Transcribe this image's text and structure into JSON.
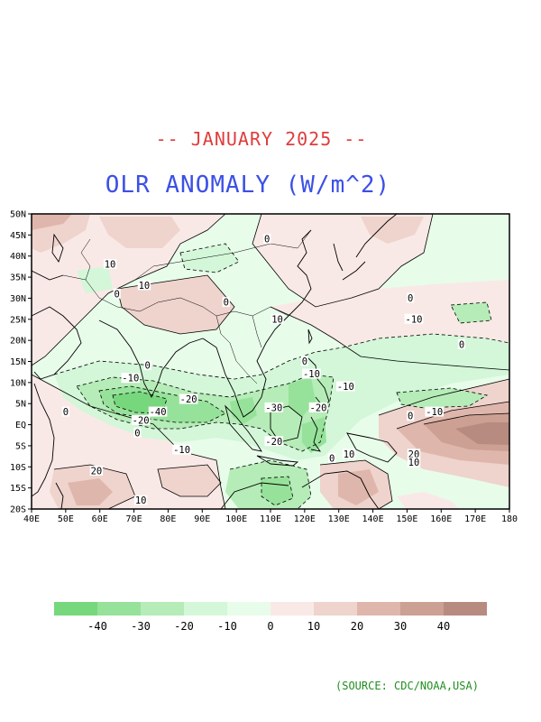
{
  "header": {
    "subtitle": "-- JANUARY 2025 --",
    "title": "OLR ANOMALY (W/m^2)"
  },
  "map": {
    "lat_labels": [
      "50N",
      "45N",
      "40N",
      "35N",
      "30N",
      "25N",
      "20N",
      "15N",
      "10N",
      "5N",
      "EQ",
      "5S",
      "10S",
      "15S",
      "20S"
    ],
    "lon_labels": [
      "40E",
      "50E",
      "60E",
      "70E",
      "80E",
      "90E",
      "100E",
      "110E",
      "120E",
      "130E",
      "140E",
      "150E",
      "160E",
      "170E",
      "180"
    ],
    "contour_labels": [
      {
        "text": "10",
        "lon": 63,
        "lat": 38
      },
      {
        "text": "10",
        "lon": 73,
        "lat": 33
      },
      {
        "text": "0",
        "lon": 65,
        "lat": 31
      },
      {
        "text": "0",
        "lon": 109,
        "lat": 44
      },
      {
        "text": "0",
        "lon": 97,
        "lat": 29
      },
      {
        "text": "10",
        "lon": 112,
        "lat": 25
      },
      {
        "text": "0",
        "lon": 151,
        "lat": 30
      },
      {
        "text": "-10",
        "lon": 152,
        "lat": 25
      },
      {
        "text": "0",
        "lon": 166,
        "lat": 19
      },
      {
        "text": "0",
        "lon": 74,
        "lat": 14
      },
      {
        "text": "-10",
        "lon": 69,
        "lat": 11
      },
      {
        "text": "-20",
        "lon": 86,
        "lat": 6
      },
      {
        "text": "-40",
        "lon": 77,
        "lat": 3
      },
      {
        "text": "-20",
        "lon": 72,
        "lat": 1
      },
      {
        "text": "0",
        "lon": 50,
        "lat": 3
      },
      {
        "text": "0",
        "lon": 71,
        "lat": -2
      },
      {
        "text": "-10",
        "lon": 84,
        "lat": -6
      },
      {
        "text": "-10",
        "lon": 122,
        "lat": 12
      },
      {
        "text": "0",
        "lon": 120,
        "lat": 15
      },
      {
        "text": "-10",
        "lon": 132,
        "lat": 9
      },
      {
        "text": "-30",
        "lon": 111,
        "lat": 4
      },
      {
        "text": "-20",
        "lon": 124,
        "lat": 4
      },
      {
        "text": "-20",
        "lon": 111,
        "lat": -4
      },
      {
        "text": "-10",
        "lon": 158,
        "lat": 3
      },
      {
        "text": "0",
        "lon": 151,
        "lat": 2
      },
      {
        "text": "20",
        "lon": 152,
        "lat": -7
      },
      {
        "text": "10",
        "lon": 152,
        "lat": -9
      },
      {
        "text": "10",
        "lon": 133,
        "lat": -7
      },
      {
        "text": "0",
        "lon": 128,
        "lat": -8
      },
      {
        "text": "20",
        "lon": 59,
        "lat": -11
      },
      {
        "text": "10",
        "lon": 72,
        "lat": -18
      }
    ]
  },
  "colorbar": {
    "colors": [
      "#77d77c",
      "#96e29a",
      "#b5ecb7",
      "#d3f7d8",
      "#e8fcea",
      "#f9e9e6",
      "#efd3cd",
      "#dfb6ac",
      "#cca093",
      "#b78b80"
    ],
    "tick_labels": [
      "-40",
      "-30",
      "-20",
      "-10",
      "0",
      "10",
      "20",
      "30",
      "40"
    ]
  },
  "source": "(SOURCE: CDC/NOAA,USA)"
}
